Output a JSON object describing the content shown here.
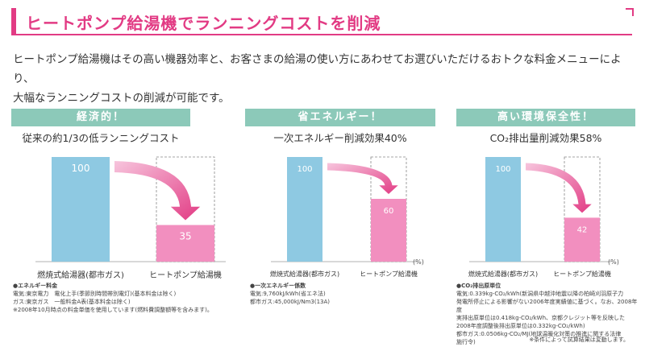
{
  "title": "ヒートポンプ給湯機でランニングコストを削減",
  "intro_lines": [
    "ヒートポンプ給湯機はその高い機器効率と、お客さまの給湯の使い方にあわせてお選びいただけるおトクな料金メニューにより、",
    "大幅なランニングコストの削減が可能です。"
  ],
  "colors": {
    "accent": "#e23b84",
    "panel_head": "#8cc9b9",
    "bar_blue": "#8ec9e2",
    "bar_pink": "#f28fbf"
  },
  "chart_data": [
    {
      "type": "bar",
      "title": "経済的！",
      "subtitle": "従来の約1/3の低ランニングコスト",
      "categories": [
        "燃焼式給湯器(都市ガス)",
        "ヒートポンプ給湯機"
      ],
      "values": [
        100,
        35
      ],
      "unit": "",
      "ylim": [
        0,
        100
      ]
    },
    {
      "type": "bar",
      "title": "省エネルギー！",
      "subtitle": "一次エネルギー削減効果40%",
      "categories": [
        "燃焼式給湯器(都市ガス)",
        "ヒートポンプ給湯機"
      ],
      "values": [
        100,
        60
      ],
      "unit": "(%)",
      "ylim": [
        0,
        100
      ]
    },
    {
      "type": "bar",
      "title": "高い環境保全性！",
      "subtitle": "CO₂排出量削減効果58%",
      "categories": [
        "燃焼式給湯器(都市ガス)",
        "ヒートポンプ給湯機"
      ],
      "values": [
        100,
        42
      ],
      "unit": "(%)",
      "ylim": [
        0,
        100
      ]
    }
  ],
  "notes": [
    {
      "heading": "●エネルギー料金",
      "lines": [
        "電気:東京電力　電化上手(季節別時間帯別電灯)(基本料金は除く)",
        "ガス:東京ガス　一般料金A表(基本料金は除く)",
        "※2008年10月時点の料金単価を使用しています(燃料費調整額等を含みます)。"
      ]
    },
    {
      "heading": "●一次エネルギー係数",
      "lines": [
        "電気:9,760kJ/kWh(省エネ法)",
        "都市ガス:45,000kJ/Nm3(13A)"
      ]
    },
    {
      "heading": "●CO₂排出原単位",
      "lines": [
        "電気:0.339kg-CO₂/kWh(新潟県中越沖地震以降の柏崎刈羽原子力",
        "発電所停止による影響がない2006年度実績値に基づく。なお、2008年度",
        "実排出原単位は0.418kg-CO₂/kWh、京都クレジット等を反映した",
        "2008年度調整後排出原単位は0.332kg-CO₂/kWh)",
        "都市ガス:0.0506kg-CO₂/MJ(地球温暖化対策の推進に関する法律",
        "施行令)"
      ]
    }
  ],
  "footnote": "※条件によって試算結果は変動します。"
}
